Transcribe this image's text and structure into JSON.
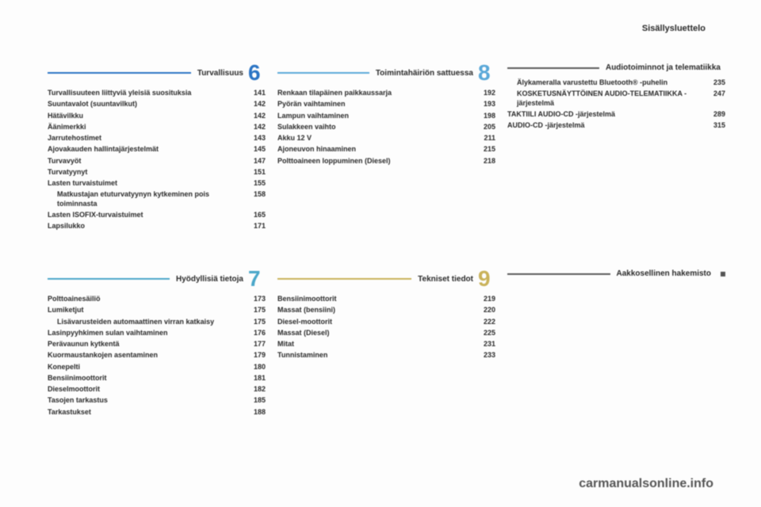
{
  "header": "Sisällysluettelo",
  "watermark": "carmanualsonline.info",
  "sections": {
    "s6": {
      "num": "6",
      "color": "#2b74c4",
      "title": "Turvallisuus",
      "items": [
        {
          "label": "Turvallisuuteen liittyviä yleisiä suosituksia",
          "page": "141"
        },
        {
          "label": "Suuntavalot (suuntavilkut)",
          "page": "142"
        },
        {
          "label": "Hätävilkku",
          "page": "142"
        },
        {
          "label": "Äänimerkki",
          "page": "142"
        },
        {
          "label": "Jarrutehostimet",
          "page": "143"
        },
        {
          "label": "Ajovakauden hallintajärjestelmät",
          "page": "145"
        },
        {
          "label": "Turvavyöt",
          "page": "147"
        },
        {
          "label": "Turvatyynyt",
          "page": "151"
        },
        {
          "label": "Lasten turvaistuimet",
          "page": "155"
        },
        {
          "label": "Matkustajan etuturvatyynyn kytkeminen pois toiminnasta",
          "page": "158",
          "sub": true
        },
        {
          "label": "Lasten ISOFIX-turvaistuimet",
          "page": "165"
        },
        {
          "label": "Lapsilukko",
          "page": "171"
        }
      ]
    },
    "s7": {
      "num": "7",
      "color": "#4aa7c9",
      "title": "Hyödyllisiä tietoja",
      "items": [
        {
          "label": "Polttoainesäiliö",
          "page": "173"
        },
        {
          "label": "Lumiketjut",
          "page": "175"
        },
        {
          "label": "Lisävarusteiden automaattinen virran katkaisу",
          "page": "175",
          "sub": true
        },
        {
          "label": "Lasinpyyhkimen sulan vaihtaminen",
          "page": "176"
        },
        {
          "label": "Perävaunun kytkentä",
          "page": "177"
        },
        {
          "label": "Kuormaustankojen asentaminen",
          "page": "179"
        },
        {
          "label": "Konepelti",
          "page": "180"
        },
        {
          "label": "Bensiinimoottorit",
          "page": "181"
        },
        {
          "label": "Dieselmoottorit",
          "page": "182"
        },
        {
          "label": "Tasojen tarkastus",
          "page": "185"
        },
        {
          "label": "Tarkastukset",
          "page": "188"
        }
      ]
    },
    "s8": {
      "num": "8",
      "color": "#5aa8d8",
      "title": "Toimintahäiriön sattuessa",
      "items": [
        {
          "label": "Renkaan tilapäinen paikkaussarja",
          "page": "192"
        },
        {
          "label": "Pyörän vaihtaminen",
          "page": "193"
        },
        {
          "label": "Lampun vaihtaminen",
          "page": "198"
        },
        {
          "label": "Sulakkeen vaihto",
          "page": "205"
        },
        {
          "label": "Akku 12 V",
          "page": "211"
        },
        {
          "label": "Ajoneuvon hinaaminen",
          "page": "215"
        },
        {
          "label": "Polttoaineen loppuminen (Diesel)",
          "page": "218"
        }
      ]
    },
    "s9": {
      "num": "9",
      "color": "#c9b25a",
      "title": "Tekniset tiedot",
      "items": [
        {
          "label": "Bensiinimoottorit",
          "page": "219"
        },
        {
          "label": "Massat (bensiini)",
          "page": "220"
        },
        {
          "label": "Diesel-moottorit",
          "page": "222"
        },
        {
          "label": "Massat (Diesel)",
          "page": "225"
        },
        {
          "label": "Mitat",
          "page": "231"
        },
        {
          "label": "Tunnistaminen",
          "page": "233"
        }
      ]
    },
    "audio": {
      "color": "#5a5a5a",
      "title": "Audiotoiminnot ja telematiikka",
      "items": [
        {
          "label": "Älykameralla varustettu Bluetooth® -puhelin",
          "page": "235",
          "sub": true
        },
        {
          "label": "KOSKETUSNÄYTTÖINEN AUDIO-TELEMATIIKKA -järjestelmä",
          "page": "247",
          "sub": true
        },
        {
          "label": "TAKTIILI AUDIO-CD -järjestelmä",
          "page": "289"
        },
        {
          "label": "AUDIO-CD -järjestelmä",
          "page": "315"
        }
      ]
    },
    "index": {
      "color": "#5a5a5a",
      "title": "Aakkosellinen hakemisto"
    }
  }
}
